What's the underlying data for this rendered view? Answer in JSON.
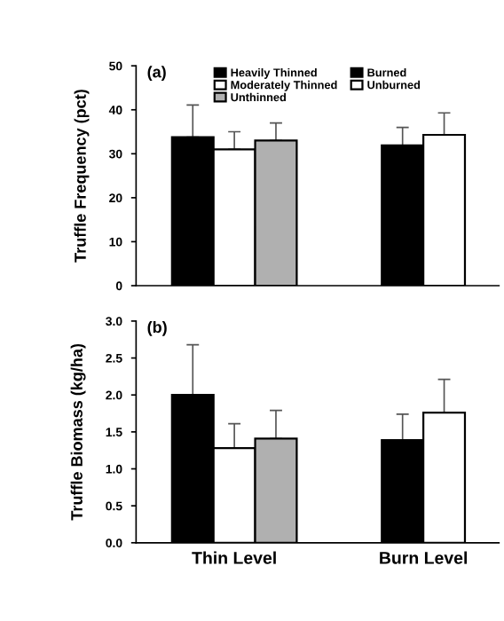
{
  "chart_data": [
    {
      "type": "bar",
      "title": "(a)",
      "ylabel": "Truffle Frequency (pct)",
      "categories": [
        null,
        null
      ],
      "ylim": [
        0,
        50
      ],
      "yticks": [
        0,
        10,
        20,
        30,
        40,
        50
      ],
      "grid": false,
      "legend": "top",
      "series": [
        {
          "name": "Heavily Thinned",
          "color": "#000000",
          "values": [
            33.8,
            null
          ],
          "errors": [
            [
              33.8,
              41.1
            ],
            null
          ]
        },
        {
          "name": "Moderately Thinned",
          "color": "#ffffff",
          "values": [
            31.0,
            null
          ],
          "errors": [
            [
              31.0,
              35.0
            ],
            null
          ]
        },
        {
          "name": "Unthinned",
          "color": "#b0b0b0",
          "values": [
            33.0,
            null
          ],
          "errors": [
            [
              33.0,
              37.0
            ],
            null
          ]
        },
        {
          "name": "Burned",
          "color": "#000000",
          "values": [
            null,
            31.9
          ],
          "errors": [
            null,
            [
              31.9,
              36.0
            ]
          ]
        },
        {
          "name": "Unburned",
          "color": "#ffffff",
          "values": [
            null,
            34.3
          ],
          "errors": [
            null,
            [
              34.3,
              39.3
            ]
          ]
        }
      ]
    },
    {
      "type": "bar",
      "title": "(b)",
      "ylabel": "Truffle Biomass (kg/ha)",
      "categories": [
        "Thin Level",
        "Burn Level"
      ],
      "ylim": [
        0,
        3.0
      ],
      "yticks": [
        {
          "value": 0,
          "label": "0.0"
        },
        0.5,
        {
          "value": 1,
          "label": "1.0"
        },
        1.5,
        {
          "value": 2,
          "label": "2.0"
        },
        2.5,
        {
          "value": 3,
          "label": "3.0"
        }
      ],
      "grid": false,
      "series": [
        {
          "color": "#000000",
          "values": [
            2.0,
            null
          ],
          "errors": [
            [
              2.0,
              2.68
            ],
            null
          ]
        },
        {
          "color": "#ffffff",
          "values": [
            1.28,
            null
          ],
          "errors": [
            [
              1.28,
              1.61
            ],
            null
          ]
        },
        {
          "color": "#b0b0b0",
          "values": [
            1.41,
            null
          ],
          "errors": [
            [
              1.41,
              1.79
            ],
            null
          ]
        },
        {
          "color": "#000000",
          "values": [
            null,
            1.39
          ],
          "errors": [
            null,
            [
              1.39,
              1.74
            ]
          ]
        },
        {
          "color": "#ffffff",
          "values": [
            null,
            1.76
          ],
          "errors": [
            null,
            [
              1.76,
              2.21
            ]
          ]
        }
      ]
    }
  ]
}
